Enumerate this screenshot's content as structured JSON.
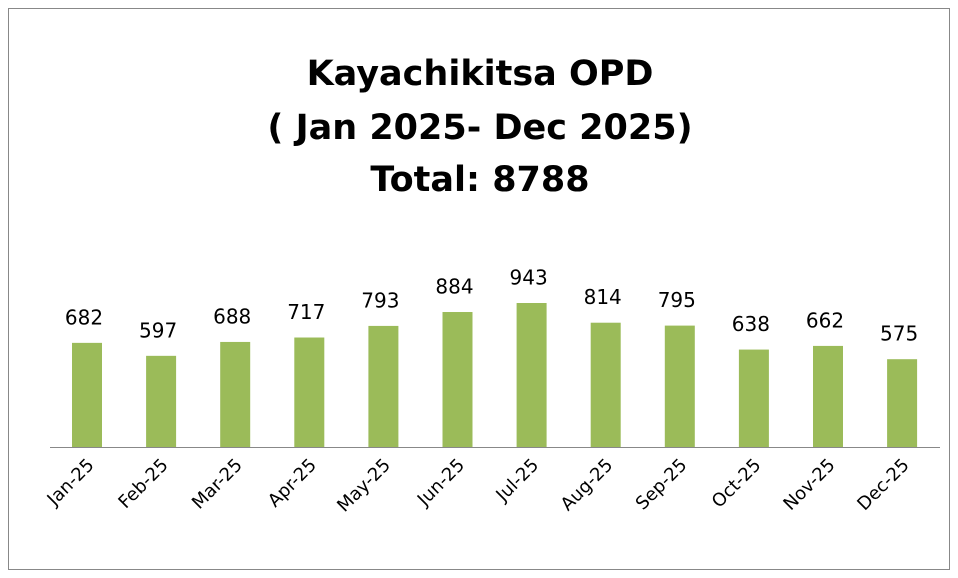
{
  "chart_data": {
    "type": "bar",
    "title": [
      "Kayachikitsa OPD",
      "( Jan 2025- Dec 2025)",
      "Total: 8788"
    ],
    "categories": [
      "Jan-25",
      "Feb-25",
      "Mar-25",
      "Apr-25",
      "May-25",
      "Jun-25",
      "Jul-25",
      "Aug-25",
      "Sep-25",
      "Oct-25",
      "Nov-25",
      "Dec-25"
    ],
    "values": [
      682,
      597,
      688,
      717,
      793,
      884,
      943,
      814,
      795,
      638,
      662,
      575
    ],
    "color": "#9bbb59"
  }
}
